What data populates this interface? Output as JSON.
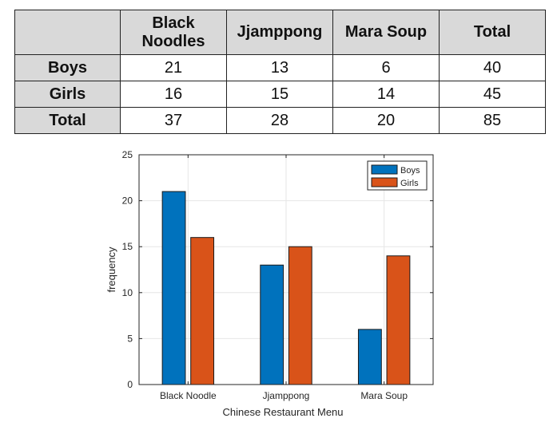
{
  "table": {
    "corner": "",
    "headers": [
      "Black\nNoodles",
      "Jjamppong",
      "Mara Soup",
      "Total"
    ],
    "rows": [
      {
        "label": "Boys",
        "cells": [
          "21",
          "13",
          "6",
          "40"
        ]
      },
      {
        "label": "Girls",
        "cells": [
          "16",
          "15",
          "14",
          "45"
        ]
      },
      {
        "label": "Total",
        "cells": [
          "37",
          "28",
          "20",
          "85"
        ]
      }
    ]
  },
  "chart_data": {
    "type": "bar",
    "categories": [
      "Black Noodle",
      "Jjamppong",
      "Mara Soup"
    ],
    "series": [
      {
        "name": "Boys",
        "values": [
          21,
          13,
          6
        ],
        "color": "#0072BD"
      },
      {
        "name": "Girls",
        "values": [
          16,
          15,
          14
        ],
        "color": "#D95319"
      }
    ],
    "title": "",
    "xlabel": "Chinese Restaurant Menu",
    "ylabel": "frequency",
    "ylim": [
      0,
      25
    ],
    "yticks": [
      0,
      5,
      10,
      15,
      20,
      25
    ],
    "grid": true,
    "legend": "top-right"
  }
}
